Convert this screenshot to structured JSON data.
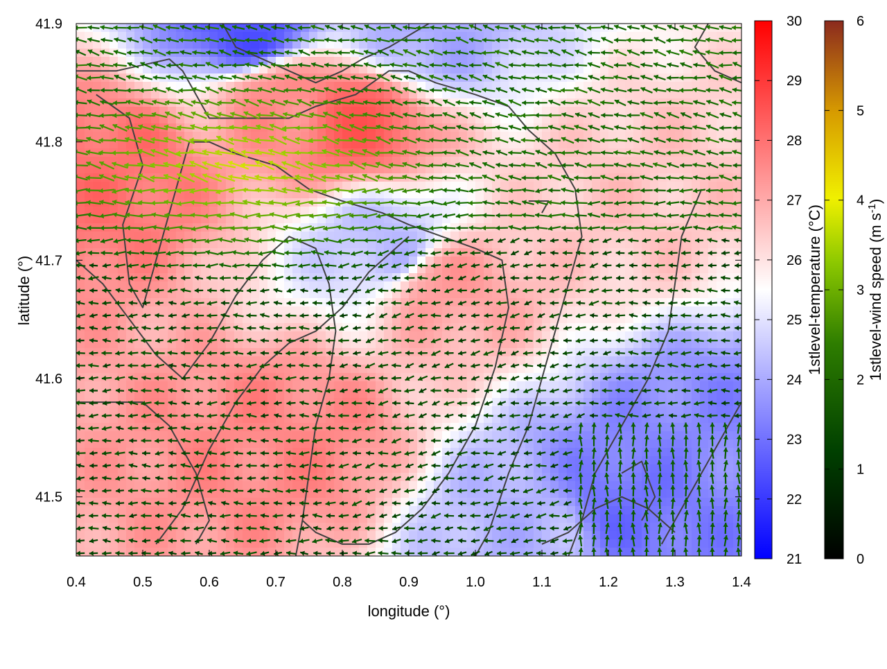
{
  "chart_data": {
    "type": "heatmap",
    "title": "",
    "xlabel": "longitude (°)",
    "ylabel": "latitude (°)",
    "xlim": [
      0.4,
      1.4
    ],
    "ylim": [
      41.45,
      41.9
    ],
    "x_ticks": [
      "0.4",
      "0.5",
      "0.6",
      "0.7",
      "0.8",
      "0.9",
      "1.0",
      "1.1",
      "1.2",
      "1.3",
      "1.4"
    ],
    "y_ticks": [
      "41.5",
      "41.6",
      "41.7",
      "41.8",
      "41.9"
    ],
    "grid": false,
    "temperature": {
      "label": "1stlevel-temperature (°C)",
      "range": [
        21,
        30
      ],
      "ticks": [
        "21",
        "22",
        "23",
        "24",
        "25",
        "26",
        "27",
        "28",
        "29",
        "30"
      ],
      "colors": {
        "low": "#0000ff",
        "mid": "#ffffff",
        "high": "#ff0000"
      },
      "field_description_points": [
        {
          "lon": 0.45,
          "lat": 41.78,
          "t": 28.0
        },
        {
          "lon": 0.7,
          "lat": 41.84,
          "t": 27.5
        },
        {
          "lon": 0.82,
          "lat": 41.82,
          "t": 28.3
        },
        {
          "lon": 0.72,
          "lat": 41.55,
          "t": 27.6
        },
        {
          "lon": 0.95,
          "lat": 41.68,
          "t": 27.2
        },
        {
          "lon": 1.25,
          "lat": 41.75,
          "t": 26.5
        },
        {
          "lon": 0.66,
          "lat": 41.89,
          "t": 22.5
        },
        {
          "lon": 0.92,
          "lat": 41.89,
          "t": 24.0
        },
        {
          "lon": 1.22,
          "lat": 41.49,
          "t": 23.0
        },
        {
          "lon": 1.36,
          "lat": 41.55,
          "t": 23.4
        },
        {
          "lon": 0.87,
          "lat": 41.71,
          "t": 24.3
        },
        {
          "lon": 1.1,
          "lat": 41.47,
          "t": 24.2
        }
      ]
    },
    "wind_speed": {
      "label": "1stlevel-wind speed (m s-1)",
      "range": [
        0,
        6
      ],
      "ticks": [
        "0",
        "1",
        "2",
        "3",
        "4",
        "5",
        "6"
      ],
      "colors": [
        "#000000",
        "#005000",
        "#3a8c00",
        "#c8e600",
        "#f0f000",
        "#d79b00",
        "#8b2a1e"
      ],
      "dominant_direction": "westward",
      "max_region": {
        "lon": [
          0.45,
          0.85
        ],
        "lat": [
          41.72,
          41.84
        ],
        "speed": 3.8
      }
    },
    "contour_color": "#404040"
  }
}
